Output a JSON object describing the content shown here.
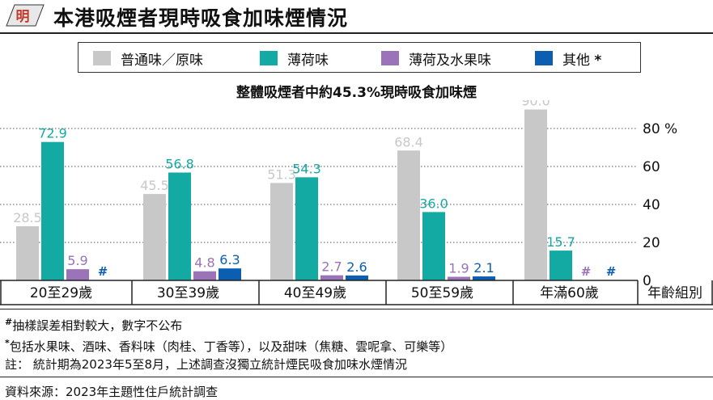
{
  "logo_text": "明",
  "title": "本港吸煙者現時吸食加味煙情況",
  "legend": [
    {
      "label": "普通味／原味",
      "color": "#c8c8c8"
    },
    {
      "label": "薄荷味",
      "color": "#13aaa3"
    },
    {
      "label": "薄荷及水果味",
      "color": "#9a73b8"
    },
    {
      "label": "其他",
      "mark": "*",
      "color": "#0c5fb0"
    }
  ],
  "subtitle": "整體吸煙者中約45.3%現時吸食加味煙",
  "chart_data": {
    "type": "bar",
    "categories": [
      "20至29歲",
      "30至39歲",
      "40至49歲",
      "50至59歲",
      "年滿60歲"
    ],
    "series": [
      {
        "name": "普通味／原味",
        "color": "#c8c8c8",
        "values": [
          28.5,
          45.5,
          51.3,
          68.4,
          90.0
        ],
        "labels": [
          "28.5",
          "45.5",
          "51.3",
          "68.4",
          "90.0"
        ]
      },
      {
        "name": "薄荷味",
        "color": "#13aaa3",
        "values": [
          72.9,
          56.8,
          54.3,
          36.0,
          15.7
        ],
        "labels": [
          "72.9",
          "56.8",
          "54.3",
          "36.0",
          "15.7"
        ]
      },
      {
        "name": "薄荷及水果味",
        "color": "#9a73b8",
        "values": [
          5.9,
          4.8,
          2.7,
          1.9,
          null
        ],
        "labels": [
          "5.9",
          "4.8",
          "2.7",
          "1.9",
          "#"
        ]
      },
      {
        "name": "其他",
        "color": "#0c5fb0",
        "values": [
          null,
          6.3,
          2.6,
          2.1,
          null
        ],
        "labels": [
          "#",
          "6.3",
          "2.6",
          "2.1",
          "#"
        ]
      }
    ],
    "y_ticks": [
      "0",
      "20",
      "40",
      "60",
      "80 %"
    ],
    "ylim": [
      0,
      90
    ],
    "xlabel": "年齡組別",
    "grid": "dotted horizontal"
  },
  "notes": [
    {
      "mark": "#",
      "text": "抽樣誤差相對較大，數字不公布"
    },
    {
      "mark": "*",
      "text": "包括水果味、酒味、香料味（肉桂、丁香等），以及甜味（焦糖、雲呢拿、可樂等）"
    },
    {
      "mark": "",
      "text": "註： 統計期為2023年5至8月，上述調查沒獨立統計煙民吸食加味水煙情況"
    }
  ],
  "source": "資料來源：2023年主題性住戶統計調查"
}
